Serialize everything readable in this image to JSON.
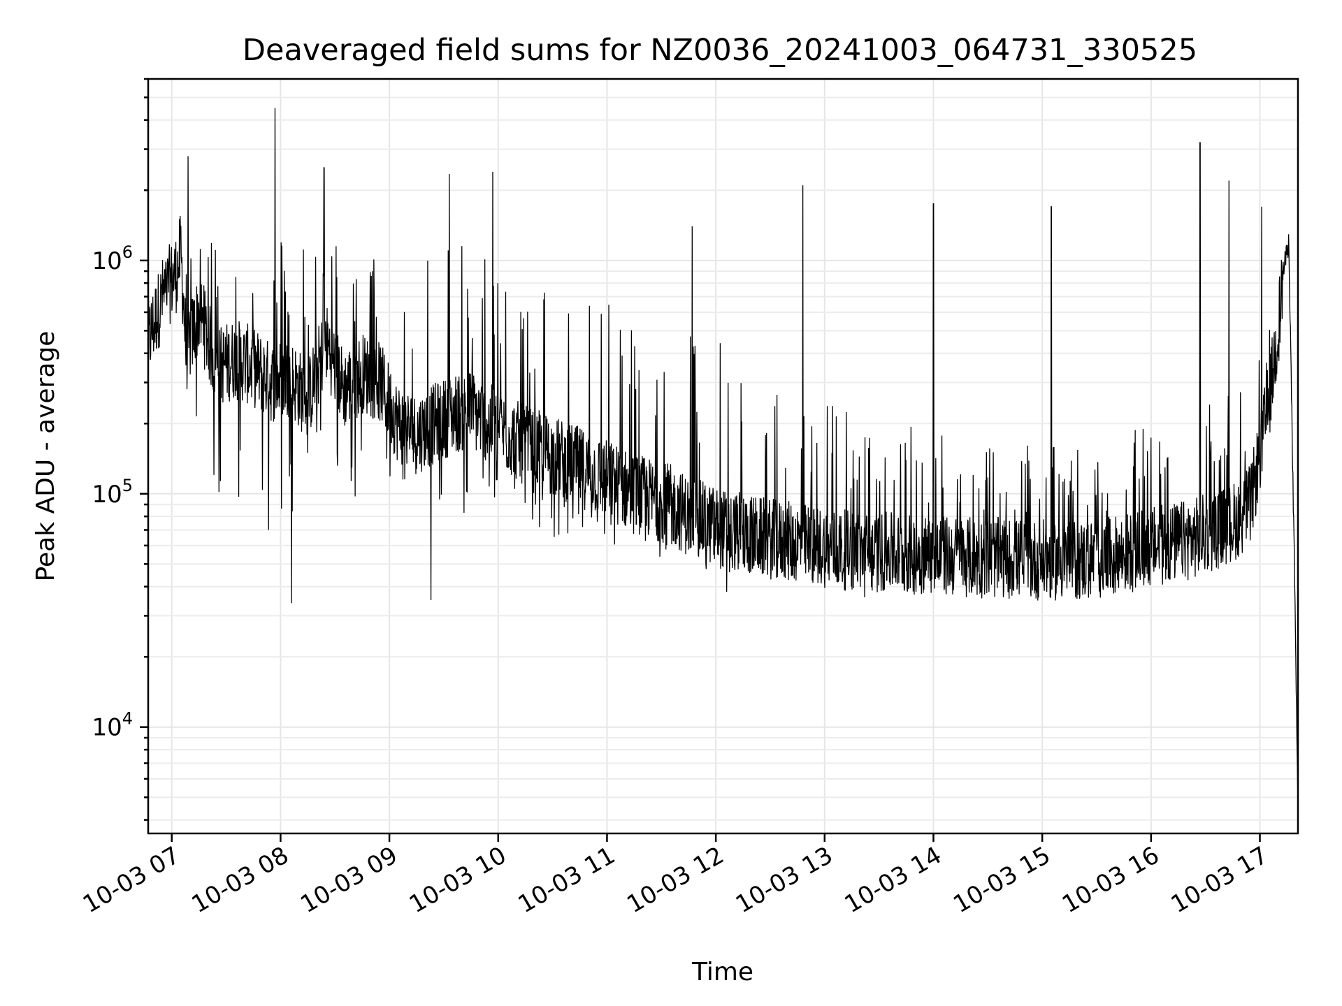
{
  "chart_data": {
    "type": "line",
    "title": "Deaveraged field sums for NZ0036_20241003_064731_330525",
    "xlabel": "Time",
    "ylabel": "Peak ADU - average",
    "yscale": "log",
    "ylim": [
      3500,
      6000000
    ],
    "xlim": [
      "2024-10-03 06:47",
      "2024-10-03 17:21"
    ],
    "grid": true,
    "x_tick_labels": [
      "10-03 07",
      "10-03 08",
      "10-03 09",
      "10-03 10",
      "10-03 11",
      "10-03 12",
      "10-03 13",
      "10-03 14",
      "10-03 15",
      "10-03 16",
      "10-03 17"
    ],
    "x_ticks": [
      "2024-10-03 07:00",
      "2024-10-03 08:00",
      "2024-10-03 09:00",
      "2024-10-03 10:00",
      "2024-10-03 11:00",
      "2024-10-03 12:00",
      "2024-10-03 13:00",
      "2024-10-03 14:00",
      "2024-10-03 15:00",
      "2024-10-03 16:00",
      "2024-10-03 17:00"
    ],
    "y_ticks": [
      10000,
      100000,
      1000000
    ],
    "y_tick_labels": [
      {
        "base": "10",
        "exp": "4"
      },
      {
        "base": "10",
        "exp": "5"
      },
      {
        "base": "10",
        "exp": "6"
      }
    ],
    "series": [
      {
        "color": "#000000",
        "x": [
          "2024-10-03 06:47",
          "2024-10-03 06:55",
          "2024-10-03 07:03",
          "2024-10-03 07:05",
          "2024-10-03 07:08",
          "2024-10-03 07:15",
          "2024-10-03 07:25",
          "2024-10-03 07:35",
          "2024-10-03 07:45",
          "2024-10-03 07:55",
          "2024-10-03 08:05",
          "2024-10-03 08:15",
          "2024-10-03 08:25",
          "2024-10-03 08:35",
          "2024-10-03 08:45",
          "2024-10-03 08:55",
          "2024-10-03 09:05",
          "2024-10-03 09:15",
          "2024-10-03 09:25",
          "2024-10-03 09:35",
          "2024-10-03 09:45",
          "2024-10-03 09:55",
          "2024-10-03 10:05",
          "2024-10-03 10:15",
          "2024-10-03 10:25",
          "2024-10-03 10:35",
          "2024-10-03 10:45",
          "2024-10-03 10:55",
          "2024-10-03 11:05",
          "2024-10-03 11:15",
          "2024-10-03 11:25",
          "2024-10-03 11:35",
          "2024-10-03 11:45",
          "2024-10-03 11:55",
          "2024-10-03 12:05",
          "2024-10-03 12:15",
          "2024-10-03 12:25",
          "2024-10-03 12:35",
          "2024-10-03 12:45",
          "2024-10-03 12:55",
          "2024-10-03 13:05",
          "2024-10-03 13:15",
          "2024-10-03 13:25",
          "2024-10-03 13:35",
          "2024-10-03 13:45",
          "2024-10-03 13:55",
          "2024-10-03 14:05",
          "2024-10-03 14:15",
          "2024-10-03 14:25",
          "2024-10-03 14:35",
          "2024-10-03 14:45",
          "2024-10-03 14:55",
          "2024-10-03 15:05",
          "2024-10-03 15:15",
          "2024-10-03 15:25",
          "2024-10-03 15:35",
          "2024-10-03 15:45",
          "2024-10-03 15:55",
          "2024-10-03 16:05",
          "2024-10-03 16:15",
          "2024-10-03 16:25",
          "2024-10-03 16:35",
          "2024-10-03 16:45",
          "2024-10-03 16:55",
          "2024-10-03 17:05",
          "2024-10-03 17:10",
          "2024-10-03 17:13",
          "2024-10-03 17:16",
          "2024-10-03 17:19",
          "2024-10-03 17:21"
        ],
        "y": [
          450000,
          700000,
          900000,
          1100000,
          400000,
          600000,
          350000,
          380000,
          350000,
          300000,
          320000,
          250000,
          450000,
          280000,
          330000,
          300000,
          200000,
          180000,
          200000,
          220000,
          230000,
          200000,
          180000,
          160000,
          150000,
          140000,
          130000,
          120000,
          110000,
          100000,
          95000,
          90000,
          80000,
          75000,
          70000,
          68000,
          65000,
          63000,
          62000,
          60000,
          58000,
          57000,
          56000,
          56000,
          55000,
          55000,
          54000,
          54000,
          53000,
          53000,
          53000,
          52000,
          52000,
          52000,
          52000,
          53000,
          55000,
          58000,
          60000,
          62000,
          65000,
          70000,
          75000,
          90000,
          250000,
          500000,
          900000,
          1200000,
          50000,
          4500
        ],
        "upper": [
          600000,
          800000,
          1000000,
          1500000,
          900000,
          900000,
          900000,
          900000,
          800000,
          800000,
          800000,
          800000,
          800000,
          800000,
          700000,
          700000,
          700000,
          700000,
          700000,
          700000,
          650000,
          650000,
          600000,
          550000,
          500000,
          450000,
          420000,
          400000,
          380000,
          350000,
          320000,
          300000,
          280000,
          260000,
          250000,
          230000,
          220000,
          200000,
          180000,
          170000,
          160000,
          150000,
          145000,
          140000,
          135000,
          130000,
          125000,
          120000,
          118000,
          115000,
          112000,
          110000,
          110000,
          110000,
          110000,
          115000,
          120000,
          130000,
          140000,
          150000,
          160000,
          170000,
          180000,
          200000,
          400000,
          700000,
          1100000,
          1400000,
          90000,
          6000
        ],
        "lower": [
          400000,
          600000,
          700000,
          800000,
          350000,
          150000,
          100000,
          90000,
          80000,
          60000,
          80000,
          100000,
          150000,
          110000,
          80000,
          100000,
          120000,
          70000,
          60000,
          70000,
          80000,
          80000,
          75000,
          70000,
          65000,
          65000,
          63000,
          60000,
          58000,
          56000,
          55000,
          50000,
          48000,
          46000,
          45000,
          44000,
          43000,
          42000,
          42000,
          41000,
          41000,
          41000,
          41000,
          41000,
          40000,
          40000,
          40000,
          40000,
          40000,
          40000,
          40000,
          40000,
          40000,
          40000,
          40000,
          42000,
          43000,
          45000,
          46000,
          48000,
          50000,
          52000,
          55000,
          60000,
          150000,
          400000,
          800000,
          1000000,
          30000,
          4500
        ],
        "peaks": [
          {
            "x": "2024-10-03 07:09",
            "y": 2800000
          },
          {
            "x": "2024-10-03 07:57",
            "y": 4500000
          },
          {
            "x": "2024-10-03 08:24",
            "y": 2500000
          },
          {
            "x": "2024-10-03 09:33",
            "y": 2350000
          },
          {
            "x": "2024-10-03 09:57",
            "y": 2400000
          },
          {
            "x": "2024-10-03 11:47",
            "y": 1400000
          },
          {
            "x": "2024-10-03 12:48",
            "y": 2100000
          },
          {
            "x": "2024-10-03 14:00",
            "y": 1750000
          },
          {
            "x": "2024-10-03 15:05",
            "y": 1700000
          },
          {
            "x": "2024-10-03 16:27",
            "y": 3200000
          },
          {
            "x": "2024-10-03 16:43",
            "y": 2200000
          },
          {
            "x": "2024-10-03 17:01",
            "y": 1700000
          }
        ],
        "dips": [
          {
            "x": "2024-10-03 08:06",
            "y": 34000
          },
          {
            "x": "2024-10-03 09:23",
            "y": 35000
          },
          {
            "x": "2024-10-03 12:06",
            "y": 38000
          },
          {
            "x": "2024-10-03 13:22",
            "y": 36000
          }
        ]
      }
    ]
  }
}
